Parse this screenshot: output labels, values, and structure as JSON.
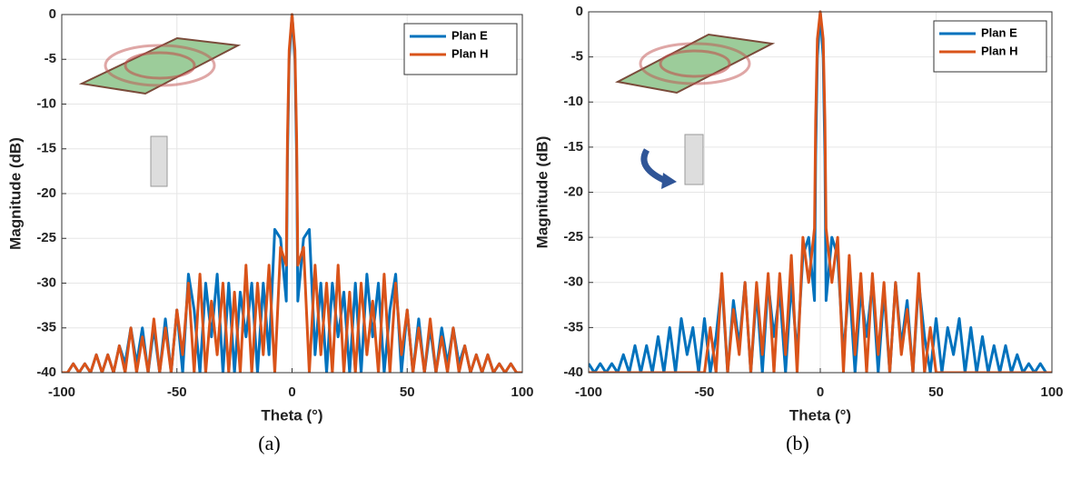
{
  "chart_data": [
    {
      "type": "line",
      "caption": "(a)",
      "xlabel": "Theta (°)",
      "ylabel": "Magnitude (dB)",
      "xlim": [
        -100,
        100
      ],
      "ylim": [
        -40,
        0
      ],
      "xticks": [
        -100,
        -50,
        0,
        50,
        100
      ],
      "yticks": [
        0,
        -5,
        -10,
        -15,
        -20,
        -25,
        -30,
        -35,
        -40
      ],
      "grid": true,
      "legend": "upper right",
      "x": [
        -100,
        -97.5,
        -95,
        -92.5,
        -90,
        -87.5,
        -85,
        -82.5,
        -80,
        -77.5,
        -75,
        -72.5,
        -70,
        -67.5,
        -65,
        -62.5,
        -60,
        -57.5,
        -55,
        -52.5,
        -50,
        -47.5,
        -45,
        -42.5,
        -40,
        -37.5,
        -35,
        -32.5,
        -30,
        -27.5,
        -25,
        -22.5,
        -20,
        -17.5,
        -15,
        -12.5,
        -10,
        -7.5,
        -5,
        -2.5,
        -2,
        -1.25,
        0,
        1.25,
        2,
        2.5,
        5,
        7.5,
        10,
        12.5,
        15,
        17.5,
        20,
        22.5,
        25,
        27.5,
        30,
        32.5,
        35,
        37.5,
        40,
        42.5,
        45,
        47.5,
        50,
        52.5,
        55,
        57.5,
        60,
        62.5,
        65,
        67.5,
        70,
        72.5,
        75,
        77.5,
        80,
        82.5,
        85,
        87.5,
        90,
        92.5,
        95,
        97.5,
        100
      ],
      "series": [
        {
          "name": "Plan E",
          "color": "#0072bd",
          "values": [
            -40,
            -40,
            -39,
            -40,
            -39,
            -40,
            -38,
            -40,
            -38,
            -40,
            -37,
            -39,
            -35,
            -39,
            -35,
            -40,
            -35,
            -40,
            -34,
            -40,
            -33,
            -40,
            -29,
            -33,
            -40,
            -30,
            -36,
            -29,
            -40,
            -30,
            -40,
            -31,
            -36,
            -30,
            -40,
            -30,
            -38,
            -24,
            -25,
            -32,
            -16,
            -5,
            0,
            -5,
            -16,
            -32,
            -25,
            -24,
            -38,
            -30,
            -40,
            -30,
            -36,
            -31,
            -40,
            -30,
            -40,
            -29,
            -36,
            -30,
            -40,
            -33,
            -29,
            -40,
            -33,
            -40,
            -34,
            -40,
            -35,
            -40,
            -35,
            -39,
            -35,
            -39,
            -37,
            -40,
            -38,
            -40,
            -38,
            -40,
            -39,
            -40,
            -39,
            -40,
            -40
          ]
        },
        {
          "name": "Plan H",
          "color": "#d95319",
          "values": [
            -40,
            -40,
            -39,
            -40,
            -39,
            -40,
            -38,
            -40,
            -38,
            -40,
            -37,
            -40,
            -35,
            -40,
            -36,
            -40,
            -34,
            -40,
            -35,
            -40,
            -33,
            -38,
            -30,
            -40,
            -29,
            -40,
            -32,
            -38,
            -30,
            -40,
            -31,
            -40,
            -28,
            -40,
            -30,
            -38,
            -28,
            -40,
            -26,
            -28,
            -14,
            -4,
            0,
            -4,
            -14,
            -28,
            -26,
            -40,
            -28,
            -38,
            -30,
            -40,
            -28,
            -40,
            -31,
            -40,
            -30,
            -38,
            -32,
            -40,
            -29,
            -40,
            -30,
            -38,
            -33,
            -40,
            -35,
            -40,
            -34,
            -40,
            -36,
            -40,
            -35,
            -40,
            -37,
            -40,
            -38,
            -40,
            -38,
            -40,
            -39,
            -40,
            -39,
            -40,
            -40
          ]
        }
      ]
    },
    {
      "type": "line",
      "caption": "(b)",
      "xlabel": "Theta (°)",
      "ylabel": "Magnitude (dB)",
      "xlim": [
        -100,
        100
      ],
      "ylim": [
        -40,
        0
      ],
      "xticks": [
        -100,
        -50,
        0,
        50,
        100
      ],
      "yticks": [
        0,
        -5,
        -10,
        -15,
        -20,
        -25,
        -30,
        -35,
        -40
      ],
      "grid": true,
      "legend": "upper right",
      "x": [
        -100,
        -97.5,
        -95,
        -92.5,
        -90,
        -87.5,
        -85,
        -82.5,
        -80,
        -77.5,
        -75,
        -72.5,
        -70,
        -67.5,
        -65,
        -62.5,
        -60,
        -57.5,
        -55,
        -52.5,
        -50,
        -47.5,
        -45,
        -42.5,
        -40,
        -37.5,
        -35,
        -32.5,
        -30,
        -27.5,
        -25,
        -22.5,
        -20,
        -17.5,
        -15,
        -12.5,
        -10,
        -7.5,
        -5,
        -2.5,
        -2,
        -1.25,
        0,
        1.25,
        2,
        2.5,
        5,
        7.5,
        10,
        12.5,
        15,
        17.5,
        20,
        22.5,
        25,
        27.5,
        30,
        32.5,
        35,
        37.5,
        40,
        42.5,
        45,
        47.5,
        50,
        52.5,
        55,
        57.5,
        60,
        62.5,
        65,
        67.5,
        70,
        72.5,
        75,
        77.5,
        80,
        82.5,
        85,
        87.5,
        90,
        92.5,
        95,
        97.5,
        100
      ],
      "series": [
        {
          "name": "Plan E",
          "color": "#0072bd",
          "values": [
            -39,
            -40,
            -39,
            -40,
            -39,
            -40,
            -38,
            -40,
            -37,
            -40,
            -37,
            -40,
            -36,
            -40,
            -35,
            -40,
            -34,
            -38,
            -35,
            -40,
            -34,
            -40,
            -36,
            -30,
            -40,
            -32,
            -37,
            -30,
            -40,
            -31,
            -40,
            -30,
            -36,
            -31,
            -40,
            -30,
            -38,
            -27,
            -25,
            -32,
            -16,
            -5,
            0,
            -5,
            -16,
            -32,
            -25,
            -27,
            -38,
            -30,
            -40,
            -31,
            -36,
            -30,
            -40,
            -31,
            -40,
            -30,
            -37,
            -32,
            -40,
            -30,
            -36,
            -40,
            -34,
            -40,
            -35,
            -38,
            -34,
            -40,
            -35,
            -40,
            -36,
            -40,
            -37,
            -40,
            -37,
            -40,
            -38,
            -40,
            -39,
            -40,
            -39,
            -40,
            -40
          ]
        },
        {
          "name": "Plan H",
          "color": "#d95319",
          "values": [
            -40,
            -40,
            -40,
            -40,
            -40,
            -40,
            -40,
            -40,
            -40,
            -40,
            -40,
            -40,
            -40,
            -40,
            -40,
            -40,
            -40,
            -40,
            -40,
            -40,
            -40,
            -35,
            -40,
            -29,
            -40,
            -33,
            -38,
            -30,
            -40,
            -30,
            -38,
            -29,
            -40,
            -29,
            -38,
            -27,
            -40,
            -25,
            -30,
            -24,
            -12,
            -3,
            0,
            -3,
            -12,
            -24,
            -30,
            -25,
            -40,
            -27,
            -38,
            -29,
            -40,
            -29,
            -38,
            -30,
            -40,
            -30,
            -38,
            -33,
            -40,
            -29,
            -40,
            -35,
            -40,
            -40,
            -40,
            -40,
            -40,
            -40,
            -40,
            -40,
            -40,
            -40,
            -40,
            -40,
            -40,
            -40,
            -40,
            -40,
            -40,
            -40,
            -40,
            -40,
            -40
          ]
        }
      ]
    }
  ]
}
